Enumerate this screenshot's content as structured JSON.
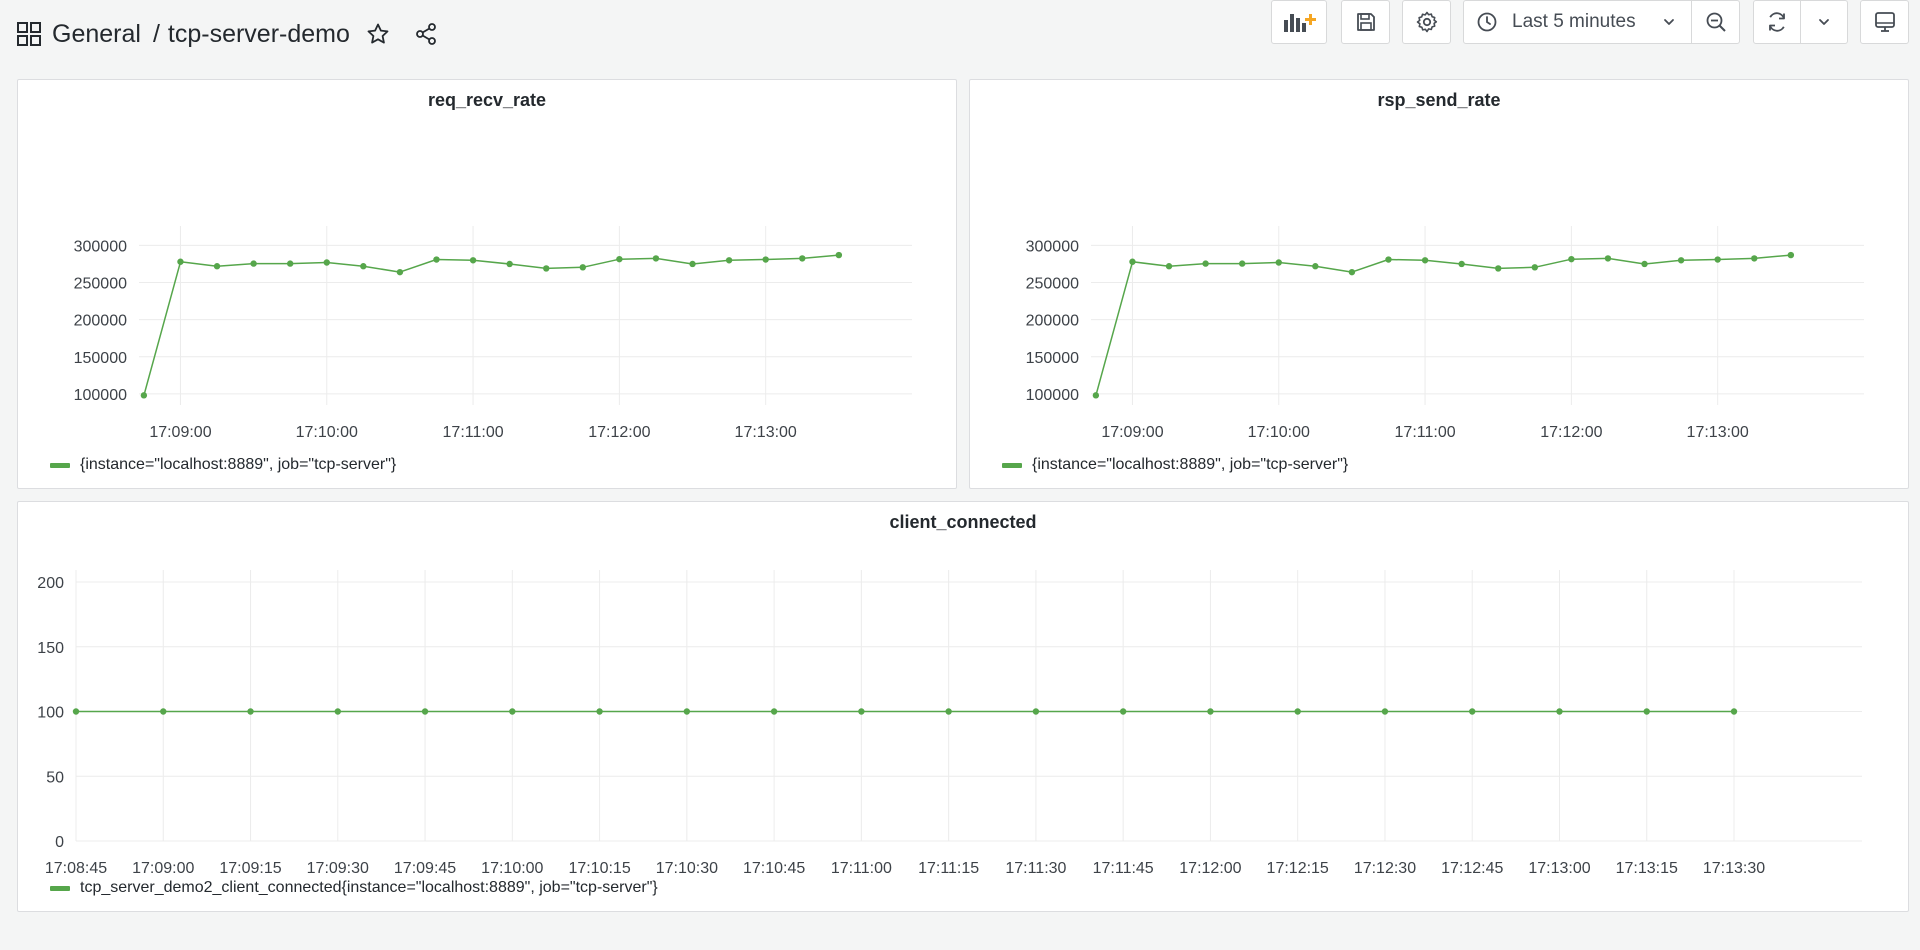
{
  "breadcrumb": {
    "folder": "General",
    "separator": "/",
    "dashboard": "tcp-server-demo"
  },
  "toolbar": {
    "time_range_label": "Last 5 minutes"
  },
  "icons": {
    "apps": "grid-icon",
    "star": "star-icon",
    "share": "share-icon",
    "add_panel": "add-panel-icon",
    "save": "save-icon",
    "settings": "gear-icon",
    "clock": "clock-icon",
    "chevron": "chevron-down-icon",
    "zoom_out": "zoom-out-icon",
    "refresh": "refresh-icon",
    "tv_mode": "monitor-icon"
  },
  "colors": {
    "series": "#56a64b",
    "add_panel_accent": "#f5a623"
  },
  "panels": {
    "req": {
      "title": "req_recv_rate",
      "legend": "{instance=\"localhost:8889\", job=\"tcp-server\"}"
    },
    "rsp": {
      "title": "rsp_send_rate",
      "legend": "{instance=\"localhost:8889\", job=\"tcp-server\"}"
    },
    "client": {
      "title": "client_connected",
      "legend": "tcp_server_demo2_client_connected{instance=\"localhost:8889\", job=\"tcp-server\"}"
    }
  },
  "chart_data": [
    {
      "type": "line",
      "title": "req_recv_rate",
      "x": [
        "17:08:45",
        "17:09:00",
        "17:09:15",
        "17:09:30",
        "17:09:45",
        "17:10:00",
        "17:10:15",
        "17:10:30",
        "17:10:45",
        "17:11:00",
        "17:11:15",
        "17:11:30",
        "17:11:45",
        "17:12:00",
        "17:12:15",
        "17:12:30",
        "17:12:45",
        "17:13:00",
        "17:13:15",
        "17:13:30"
      ],
      "series": [
        {
          "name": "{instance=\"localhost:8889\", job=\"tcp-server\"}",
          "values": [
            98000,
            278000,
            272000,
            275500,
            275500,
            277000,
            272000,
            264000,
            281000,
            280000,
            275000,
            269000,
            270500,
            281500,
            282500,
            275000,
            280000,
            281000,
            282500,
            287000
          ]
        }
      ],
      "yticks": [
        100000,
        150000,
        200000,
        250000,
        300000
      ],
      "xticks": [
        "17:09:00",
        "17:10:00",
        "17:11:00",
        "17:12:00",
        "17:13:00"
      ],
      "xlim": [
        "17:08:43",
        "17:14:00"
      ],
      "ylim": [
        85000,
        310000
      ],
      "grid": true,
      "legend": "bottom-left"
    },
    {
      "type": "line",
      "title": "rsp_send_rate",
      "x": [
        "17:08:45",
        "17:09:00",
        "17:09:15",
        "17:09:30",
        "17:09:45",
        "17:10:00",
        "17:10:15",
        "17:10:30",
        "17:10:45",
        "17:11:00",
        "17:11:15",
        "17:11:30",
        "17:11:45",
        "17:12:00",
        "17:12:15",
        "17:12:30",
        "17:12:45",
        "17:13:00",
        "17:13:15",
        "17:13:30"
      ],
      "series": [
        {
          "name": "{instance=\"localhost:8889\", job=\"tcp-server\"}",
          "values": [
            98000,
            278000,
            272000,
            275500,
            275500,
            277000,
            272000,
            264000,
            281000,
            280000,
            275000,
            269000,
            270500,
            281500,
            282500,
            275000,
            280000,
            281000,
            282500,
            287000
          ]
        }
      ],
      "yticks": [
        100000,
        150000,
        200000,
        250000,
        300000
      ],
      "xticks": [
        "17:09:00",
        "17:10:00",
        "17:11:00",
        "17:12:00",
        "17:13:00"
      ],
      "xlim": [
        "17:08:43",
        "17:14:00"
      ],
      "ylim": [
        85000,
        310000
      ],
      "grid": true,
      "legend": "bottom-left"
    },
    {
      "type": "line",
      "title": "client_connected",
      "x": [
        "17:08:45",
        "17:09:00",
        "17:09:15",
        "17:09:30",
        "17:09:45",
        "17:10:00",
        "17:10:15",
        "17:10:30",
        "17:10:45",
        "17:11:00",
        "17:11:15",
        "17:11:30",
        "17:11:45",
        "17:12:00",
        "17:12:15",
        "17:12:30",
        "17:12:45",
        "17:13:00",
        "17:13:15",
        "17:13:30"
      ],
      "series": [
        {
          "name": "tcp_server_demo2_client_connected{instance=\"localhost:8889\", job=\"tcp-server\"}",
          "values": [
            100,
            100,
            100,
            100,
            100,
            100,
            100,
            100,
            100,
            100,
            100,
            100,
            100,
            100,
            100,
            100,
            100,
            100,
            100,
            100
          ]
        }
      ],
      "yticks": [
        0,
        50,
        100,
        150,
        200
      ],
      "xticks": [
        "17:08:45",
        "17:09:00",
        "17:09:15",
        "17:09:30",
        "17:09:45",
        "17:10:00",
        "17:10:15",
        "17:10:30",
        "17:10:45",
        "17:11:00",
        "17:11:15",
        "17:11:30",
        "17:11:45",
        "17:12:00",
        "17:12:15",
        "17:12:30",
        "17:12:45",
        "17:13:00",
        "17:13:15",
        "17:13:30"
      ],
      "xlim": [
        "17:08:45",
        "17:13:52"
      ],
      "ylim": [
        0,
        200
      ],
      "grid": true,
      "legend": "bottom-left"
    }
  ]
}
